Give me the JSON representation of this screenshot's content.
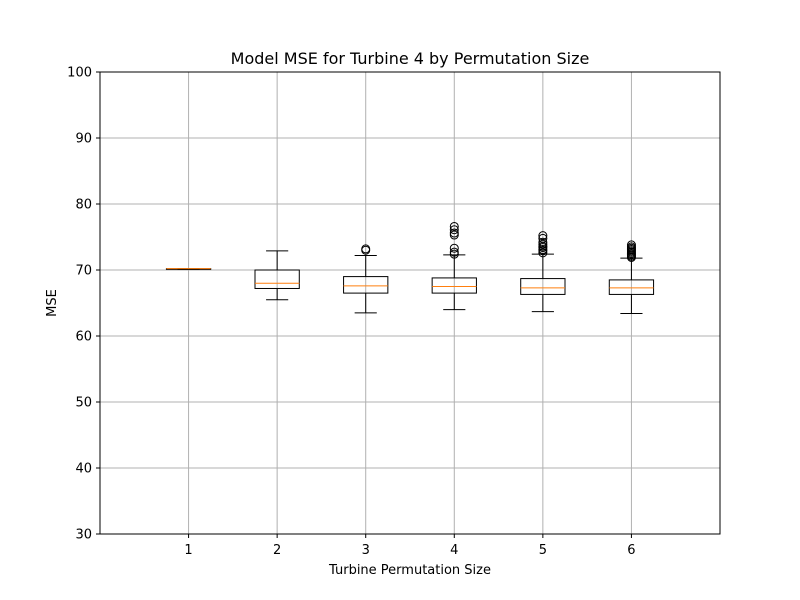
{
  "chart_data": {
    "type": "box",
    "title": "Model MSE for Turbine 4 by Permutation Size",
    "xlabel": "Turbine Permutation Size",
    "ylabel": "MSE",
    "ylim": [
      30,
      100
    ],
    "yticks": [
      30,
      40,
      50,
      60,
      70,
      80,
      90,
      100
    ],
    "xlim": [
      0,
      7
    ],
    "grid": true,
    "categories": [
      "1",
      "2",
      "3",
      "4",
      "5",
      "6"
    ],
    "boxes": [
      {
        "whisker_low": 70.1,
        "q1": 70.1,
        "median": 70.2,
        "q3": 70.2,
        "whisker_high": 70.2,
        "outliers": []
      },
      {
        "whisker_low": 65.5,
        "q1": 67.2,
        "median": 68.0,
        "q3": 70.0,
        "whisker_high": 72.9,
        "outliers": []
      },
      {
        "whisker_low": 63.5,
        "q1": 66.5,
        "median": 67.6,
        "q3": 69.0,
        "whisker_high": 72.2,
        "outliers": [
          73.0,
          73.2
        ]
      },
      {
        "whisker_low": 64.0,
        "q1": 66.5,
        "median": 67.5,
        "q3": 68.8,
        "whisker_high": 72.3,
        "outliers": [
          72.4,
          72.7,
          73.3,
          75.3,
          75.6,
          76.1,
          76.6
        ]
      },
      {
        "whisker_low": 63.7,
        "q1": 66.3,
        "median": 67.3,
        "q3": 68.7,
        "whisker_high": 72.4,
        "outliers": [
          72.6,
          72.9,
          73.1,
          73.4,
          73.6,
          73.9,
          74.2,
          74.8,
          75.2
        ]
      },
      {
        "whisker_low": 63.4,
        "q1": 66.3,
        "median": 67.3,
        "q3": 68.5,
        "whisker_high": 71.8,
        "outliers": [
          71.9,
          72.1,
          72.3,
          72.5,
          72.7,
          72.9,
          73.1,
          73.3,
          73.5,
          73.8
        ]
      }
    ],
    "colors": {
      "box": "#000000",
      "median": "#ff7f0e",
      "grid": "#b0b0b0"
    }
  }
}
